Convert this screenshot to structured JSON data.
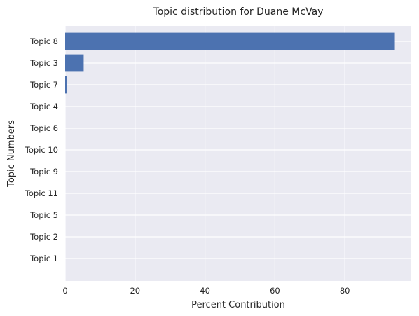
{
  "chart_data": {
    "type": "bar",
    "orientation": "horizontal",
    "title": "Topic distribution for Duane McVay",
    "xlabel": "Percent Contribution",
    "ylabel": "Topic Numbers",
    "categories": [
      "Topic 8",
      "Topic 3",
      "Topic 7",
      "Topic 4",
      "Topic 6",
      "Topic 10",
      "Topic 9",
      "Topic 11",
      "Topic 5",
      "Topic 2",
      "Topic 1"
    ],
    "values": [
      94.3,
      5.3,
      0.4,
      0,
      0,
      0,
      0,
      0,
      0,
      0,
      0
    ],
    "xlim": [
      0,
      99
    ],
    "xticks": [
      0,
      20,
      40,
      60,
      80
    ],
    "grid": true,
    "bar_color": "#4c72b0",
    "background_color": "#eaeaf2"
  }
}
